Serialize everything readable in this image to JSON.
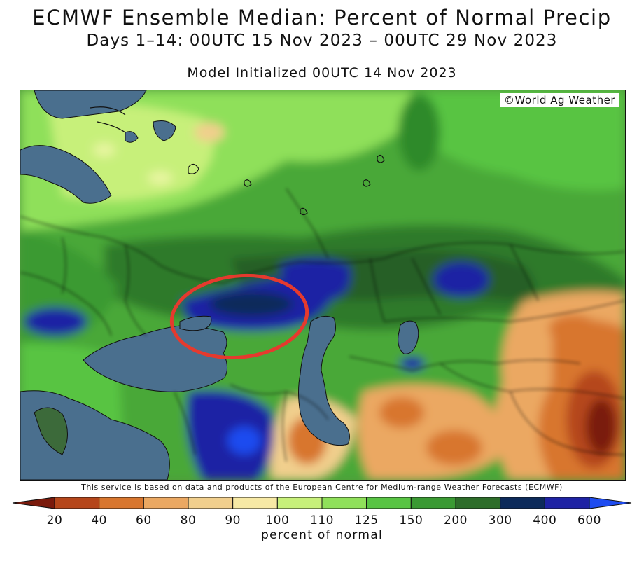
{
  "header": {
    "title": "ECMWF Ensemble Median: Percent of Normal Precip",
    "subtitle": "Days 1–14: 00UTC 15 Nov 2023 – 00UTC 29 Nov 2023",
    "init": "Model Initialized 00UTC 14 Nov 2023"
  },
  "map": {
    "watermark": "©World Ag Weather",
    "annotation": {
      "shape": "ellipse",
      "color": "#e53a2e"
    },
    "disclaimer": "This service is based on data and products of the European Centre for Medium-range Weather Forecasts (ECMWF)"
  },
  "legend": {
    "label": "percent of normal",
    "ticks": [
      "20",
      "40",
      "60",
      "80",
      "90",
      "100",
      "110",
      "125",
      "150",
      "200",
      "300",
      "400",
      "600"
    ],
    "colors": [
      "#7a1a0c",
      "#b5461a",
      "#d8762e",
      "#eba862",
      "#f1cf8d",
      "#f7e9a5",
      "#c7f07a",
      "#8fe05a",
      "#58c443",
      "#3a9a33",
      "#2d6d2a",
      "#0c2a5a",
      "#1e22a4",
      "#1f4cf0"
    ],
    "water_color": "#4a6f8e"
  }
}
